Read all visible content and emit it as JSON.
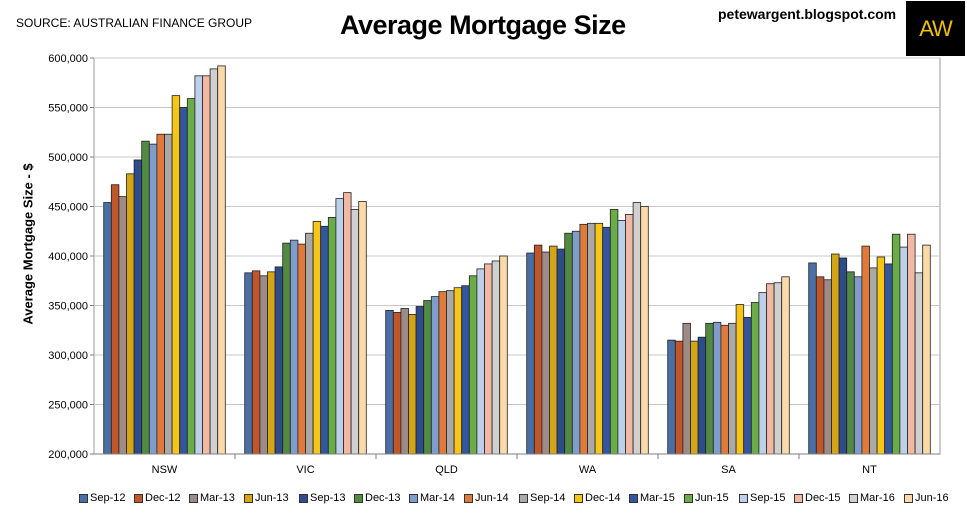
{
  "header": {
    "source": "SOURCE: AUSTRALIAN FINANCE GROUP",
    "blog": "petewargent.blogspot.com",
    "logo_text": "AW"
  },
  "chart_data": {
    "type": "bar",
    "title": "Average Mortgage Size",
    "xlabel": "",
    "ylabel": "Average Mortgage Size - $",
    "ylim": [
      200000,
      600000
    ],
    "yticks": [
      "200,000",
      "250,000",
      "300,000",
      "350,000",
      "400,000",
      "450,000",
      "500,000",
      "550,000",
      "600,000"
    ],
    "grid": true,
    "legend_position": "bottom",
    "categories": [
      "NSW",
      "VIC",
      "QLD",
      "WA",
      "SA",
      "NT"
    ],
    "series": [
      {
        "name": "Sep-12",
        "color": "#4a6fa5",
        "values": [
          454000,
          383000,
          345000,
          403000,
          315000,
          393000
        ]
      },
      {
        "name": "Dec-12",
        "color": "#c0572b",
        "values": [
          472000,
          385000,
          343000,
          411000,
          314000,
          379000
        ]
      },
      {
        "name": "Mar-13",
        "color": "#9e8a87",
        "values": [
          460000,
          380000,
          347000,
          404000,
          332000,
          376000
        ]
      },
      {
        "name": "Jun-13",
        "color": "#d4a516",
        "values": [
          483000,
          384000,
          341000,
          410000,
          314000,
          402000
        ]
      },
      {
        "name": "Sep-13",
        "color": "#2e4c8a",
        "values": [
          497000,
          389000,
          349000,
          407000,
          318000,
          398000
        ]
      },
      {
        "name": "Dec-13",
        "color": "#528a41",
        "values": [
          516000,
          413000,
          355000,
          423000,
          332000,
          384000
        ]
      },
      {
        "name": "Mar-14",
        "color": "#7f9dca",
        "values": [
          513000,
          416000,
          359000,
          425000,
          333000,
          379000
        ]
      },
      {
        "name": "Jun-14",
        "color": "#e07a3a",
        "values": [
          523000,
          412000,
          364000,
          432000,
          330000,
          410000
        ]
      },
      {
        "name": "Sep-14",
        "color": "#a9a9a9",
        "values": [
          523000,
          423000,
          365000,
          433000,
          332000,
          388000
        ]
      },
      {
        "name": "Dec-14",
        "color": "#f5c518",
        "values": [
          562000,
          435000,
          368000,
          433000,
          351000,
          399000
        ]
      },
      {
        "name": "Mar-15",
        "color": "#34569e",
        "values": [
          550000,
          430000,
          370000,
          429000,
          338000,
          392000
        ]
      },
      {
        "name": "Jun-15",
        "color": "#6aac48",
        "values": [
          559000,
          439000,
          380000,
          447000,
          353000,
          422000
        ]
      },
      {
        "name": "Sep-15",
        "color": "#bdd0ea",
        "values": [
          582000,
          458000,
          387000,
          436000,
          363000,
          409000
        ]
      },
      {
        "name": "Dec-15",
        "color": "#f1b9a4",
        "values": [
          582000,
          464000,
          392000,
          442000,
          372000,
          422000
        ]
      },
      {
        "name": "Mar-16",
        "color": "#d0d0d0",
        "values": [
          589000,
          447000,
          395000,
          454000,
          373000,
          383000
        ]
      },
      {
        "name": "Jun-16",
        "color": "#fbd9a8",
        "values": [
          592000,
          455000,
          400000,
          450000,
          379000,
          411000
        ]
      }
    ]
  }
}
